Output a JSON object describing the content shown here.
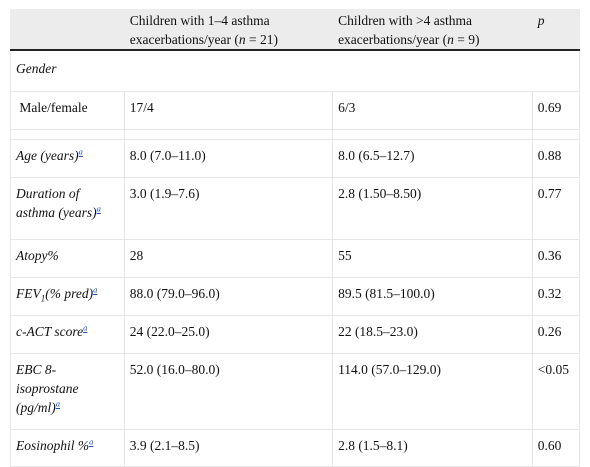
{
  "header": {
    "col1": "",
    "col2_line1": "Children with 1–4 asthma",
    "col2_line2_pre": "exacerbations/year (",
    "col2_n": "n",
    "col2_line2_post": " = 21)",
    "col3_line1": "Children with >4 asthma",
    "col3_line2_pre": "exacerbations/year (",
    "col3_n": "n",
    "col3_line2_post": " = 9)",
    "col4": "p"
  },
  "footnote_mark": "a",
  "rows": {
    "gender_section": "Gender",
    "sex": {
      "label": " Male/female",
      "g1": "17/4",
      "g2": "6/3",
      "p": "0.69"
    },
    "age": {
      "label": "Age (years)",
      "g1": "8.0 (7.0–11.0)",
      "g2": "8.0 (6.5–12.7)",
      "p": "0.88"
    },
    "duration": {
      "label_line1": "Duration of",
      "label_line2": "asthma (years)",
      "g1": "3.0 (1.9–7.6)",
      "g2": "2.8 (1.50–8.50)",
      "p": "0.77"
    },
    "atopy": {
      "label": "Atopy%",
      "g1": "28",
      "g2": "55",
      "p": "0.36"
    },
    "fev1": {
      "label_pre": "FEV",
      "label_sub": "1",
      "label_post": "(% pred)",
      "g1": "88.0 (79.0–96.0)",
      "g2": "89.5 (81.5–100.0)",
      "p": "0.32"
    },
    "cact": {
      "label": "c-ACT score",
      "g1": "24 (22.0–25.0)",
      "g2": "22 (18.5–23.0)",
      "p": "0.26"
    },
    "ebc": {
      "label_line1": "EBC 8-",
      "label_line2": "isoprostane",
      "label_line3": "(pg/ml)",
      "g1": "52.0 (16.0–80.0)",
      "g2": "114.0 (57.0–129.0)",
      "p": "<0.05"
    },
    "eos": {
      "label": "Eosinophil %",
      "g1": "3.9 (2.1–8.5)",
      "g2": "2.8 (1.5–8.1)",
      "p": "0.60"
    }
  }
}
